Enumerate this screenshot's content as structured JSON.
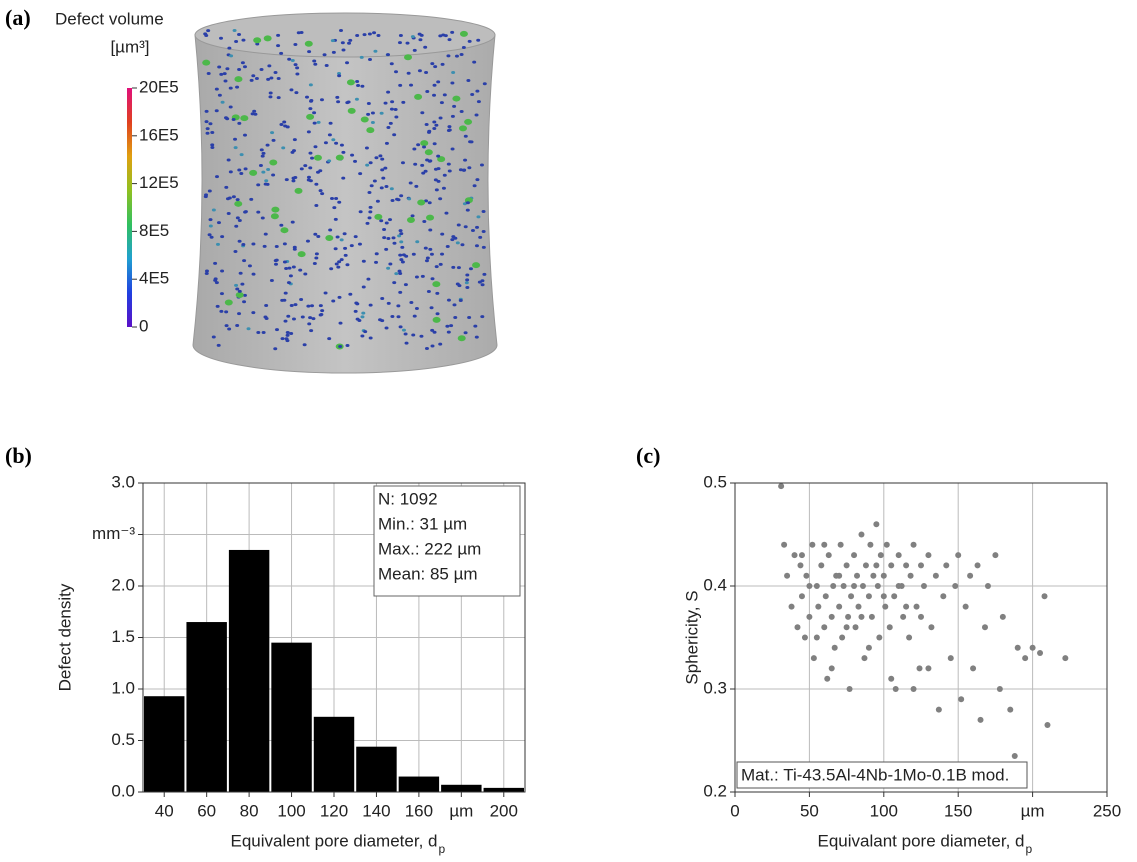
{
  "chart_data": [
    {
      "type": "colorbar",
      "panel_label": "(a)",
      "title": "Defect volume",
      "subtitle": "[µm³]",
      "ylim": [
        0,
        2000000
      ],
      "yticks": [
        0,
        {
          "value": 400000,
          "label": "4E5"
        },
        {
          "value": 800000,
          "label": "8E5"
        },
        {
          "value": 1200000,
          "label": "12E5"
        },
        {
          "value": 1600000,
          "label": "16E5"
        },
        {
          "value": 2000000,
          "label": "20E5"
        }
      ],
      "colors": [
        "#5a10c8",
        "#2040e0",
        "#20a0d0",
        "#30c060",
        "#90c020",
        "#e0a010",
        "#e04020",
        "#e0107a"
      ]
    },
    {
      "type": "histogram",
      "panel_label": "(b)",
      "x_label": "Equivalent pore diameter, d",
      "x_label_sub": "p",
      "y_label": "Defect density",
      "bins": [
        30,
        50,
        70,
        90,
        110,
        130,
        150,
        170,
        190,
        210
      ],
      "values": [
        0.93,
        1.65,
        2.35,
        1.45,
        0.73,
        0.44,
        0.15,
        0.07,
        0.04
      ],
      "color": "#000000",
      "xlim": [
        30,
        210
      ],
      "xticks": [
        40,
        60,
        80,
        100,
        120,
        140,
        160,
        {
          "value": 180,
          "label": "µm"
        },
        200
      ],
      "ylim": [
        0,
        3
      ],
      "yticks": [
        {
          "value": 0,
          "label": "0.0"
        },
        0.5,
        {
          "value": 1,
          "label": "1.0"
        },
        1.5,
        {
          "value": 2,
          "label": "2.0"
        },
        {
          "value": 2.5,
          "label": "mm⁻³"
        },
        {
          "value": 3,
          "label": "3.0"
        }
      ],
      "grid": true,
      "annotations": [
        "N: 1092",
        "Min.: 31 µm",
        "Max.: 222 µm",
        "Mean: 85 µm"
      ]
    },
    {
      "type": "scatter",
      "panel_label": "(c)",
      "x_label": "Equivalant pore diameter, d",
      "x_label_sub": "p",
      "y_label": "Sphericity, S",
      "color": "#808080",
      "x": [
        31,
        33,
        35,
        38,
        40,
        42,
        44,
        45,
        47,
        48,
        50,
        52,
        53,
        55,
        56,
        58,
        60,
        61,
        62,
        63,
        65,
        66,
        67,
        68,
        70,
        71,
        72,
        73,
        75,
        76,
        77,
        78,
        80,
        81,
        82,
        83,
        85,
        86,
        87,
        88,
        90,
        91,
        92,
        93,
        95,
        96,
        97,
        98,
        100,
        101,
        102,
        104,
        105,
        107,
        108,
        110,
        112,
        113,
        115,
        117,
        118,
        120,
        122,
        124,
        125,
        127,
        130,
        132,
        135,
        137,
        140,
        142,
        145,
        148,
        150,
        152,
        155,
        158,
        160,
        163,
        165,
        168,
        170,
        175,
        178,
        180,
        185,
        190,
        195,
        200,
        205,
        208,
        210,
        222,
        45,
        50,
        55,
        60,
        65,
        70,
        75,
        80,
        85,
        90,
        95,
        100,
        105,
        110,
        115,
        120,
        125,
        130,
        188
      ],
      "y": [
        0.497,
        0.44,
        0.41,
        0.38,
        0.43,
        0.36,
        0.42,
        0.39,
        0.35,
        0.41,
        0.37,
        0.44,
        0.33,
        0.4,
        0.38,
        0.42,
        0.36,
        0.39,
        0.31,
        0.43,
        0.37,
        0.4,
        0.34,
        0.41,
        0.38,
        0.44,
        0.35,
        0.4,
        0.42,
        0.37,
        0.3,
        0.39,
        0.43,
        0.36,
        0.41,
        0.38,
        0.45,
        0.4,
        0.33,
        0.42,
        0.39,
        0.44,
        0.37,
        0.41,
        0.46,
        0.4,
        0.35,
        0.43,
        0.41,
        0.38,
        0.44,
        0.36,
        0.42,
        0.39,
        0.3,
        0.43,
        0.4,
        0.37,
        0.42,
        0.35,
        0.41,
        0.44,
        0.38,
        0.32,
        0.42,
        0.4,
        0.43,
        0.36,
        0.41,
        0.28,
        0.39,
        0.42,
        0.33,
        0.4,
        0.43,
        0.29,
        0.38,
        0.41,
        0.32,
        0.42,
        0.27,
        0.36,
        0.4,
        0.43,
        0.3,
        0.37,
        0.28,
        0.34,
        0.33,
        0.34,
        0.335,
        0.39,
        0.265,
        0.33,
        0.43,
        0.4,
        0.35,
        0.44,
        0.32,
        0.41,
        0.36,
        0.4,
        0.37,
        0.34,
        0.42,
        0.39,
        0.31,
        0.4,
        0.38,
        0.3,
        0.37,
        0.32,
        0.235
      ],
      "xlim": [
        0,
        250
      ],
      "xticks": [
        0,
        50,
        100,
        150,
        {
          "value": 200,
          "label": "µm"
        },
        250
      ],
      "ylim": [
        0.2,
        0.5
      ],
      "yticks": [
        0.2,
        0.3,
        0.4,
        0.5
      ],
      "grid": true,
      "annotations": [
        "Mat.: Ti-43.5Al-4Nb-1Mo-0.1B mod."
      ]
    }
  ]
}
